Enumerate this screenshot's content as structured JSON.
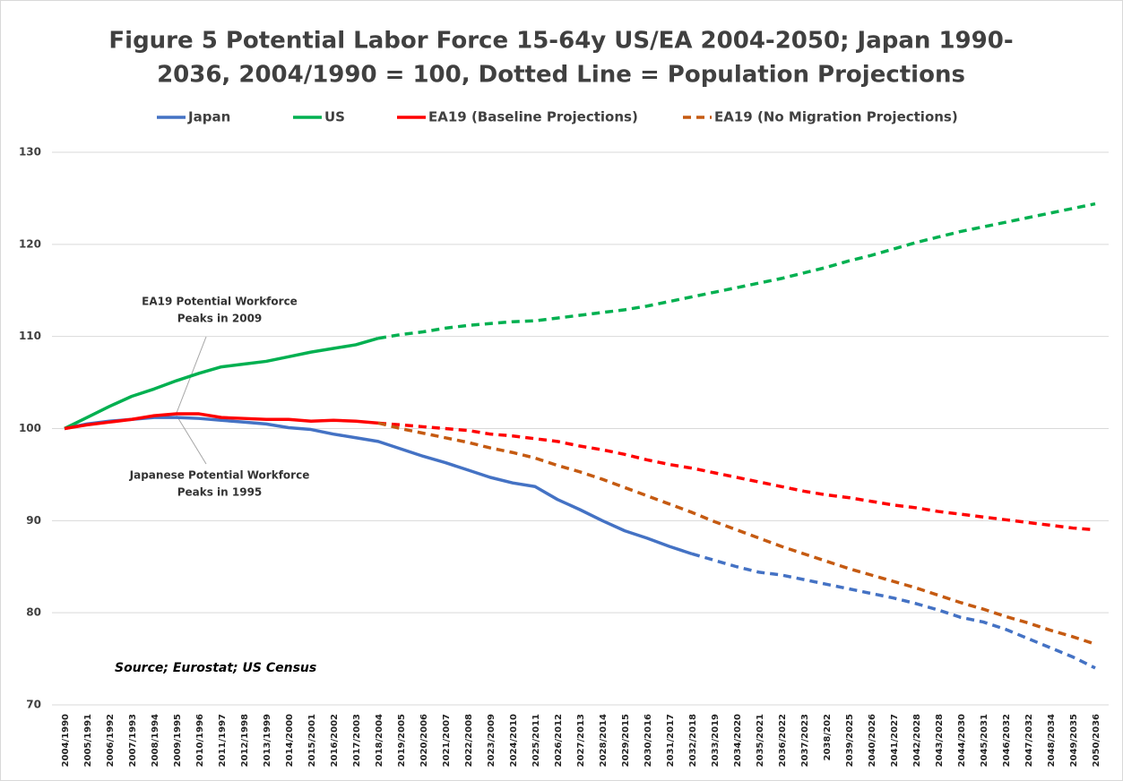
{
  "chart_data": {
    "type": "line",
    "title": [
      "Figure 5   Potential Labor Force 15-64y   US/EA 2004-2050; Japan 1990-",
      "2036, 2004/1990 = 100, Dotted Line = Population Projections"
    ],
    "categories": [
      "2004/1990",
      "2005/1991",
      "2006/1992",
      "2007/1993",
      "2008/1994",
      "2009/1995",
      "2010/1996",
      "2011/1997",
      "2012/1998",
      "2013/1999",
      "2014/2000",
      "2015/2001",
      "2016/2002",
      "2017/2003",
      "2018/2004",
      "2019/2005",
      "2020/2006",
      "2021/2007",
      "2022/2008",
      "2023/2009",
      "2024/2010",
      "2025/2011",
      "2026/2012",
      "2027/2013",
      "2028/2014",
      "2029/2015",
      "2030/2016",
      "2031/2017",
      "2032/2018",
      "2033/2019",
      "2034/2020",
      "2035/2021",
      "2036/2022",
      "2037/2023",
      "2038/202",
      "2039/2025",
      "2040/2026",
      "2041/2027",
      "2042/2028",
      "2043/2028",
      "2044/2030",
      "2045/2031",
      "2046/2032",
      "2047/2032",
      "2048/2034",
      "2049/2035",
      "2050/2036"
    ],
    "series": [
      {
        "name": "Japan",
        "color": "#4472c4",
        "dash_from": 28,
        "values": [
          100,
          100.5,
          100.8,
          101.0,
          101.2,
          101.2,
          101.1,
          100.9,
          100.7,
          100.5,
          100.1,
          99.9,
          99.4,
          99.0,
          98.6,
          97.8,
          97.0,
          96.3,
          95.5,
          94.7,
          94.1,
          93.7,
          92.3,
          91.2,
          90.0,
          88.9,
          88.1,
          87.2,
          86.4,
          85.7,
          85.0,
          84.4,
          84.1,
          83.6,
          83.1,
          82.6,
          82.1,
          81.6,
          81.0,
          80.3,
          79.5,
          79.0,
          78.2,
          77.2,
          76.2,
          75.2,
          74.0
        ]
      },
      {
        "name": "US",
        "color": "#00b050",
        "dash_from": 14,
        "values": [
          100,
          101.2,
          102.4,
          103.5,
          104.3,
          105.2,
          106.0,
          106.7,
          107.0,
          107.3,
          107.8,
          108.3,
          108.7,
          109.1,
          109.8,
          110.2,
          110.5,
          110.9,
          111.2,
          111.4,
          111.6,
          111.7,
          112.0,
          112.3,
          112.6,
          112.9,
          113.3,
          113.8,
          114.3,
          114.8,
          115.3,
          115.8,
          116.3,
          116.9,
          117.5,
          118.2,
          118.8,
          119.5,
          120.2,
          120.8,
          121.4,
          121.9,
          122.4,
          122.9,
          123.4,
          123.9,
          124.4
        ]
      },
      {
        "name": "EA19 (Baseline Projections)",
        "color": "#ff0000",
        "dash_from": 14,
        "values": [
          100,
          100.4,
          100.7,
          101.0,
          101.4,
          101.6,
          101.6,
          101.2,
          101.1,
          101.0,
          101.0,
          100.8,
          100.9,
          100.8,
          100.6,
          100.4,
          100.2,
          100.0,
          99.8,
          99.4,
          99.2,
          98.9,
          98.6,
          98.1,
          97.7,
          97.2,
          96.6,
          96.1,
          95.7,
          95.2,
          94.7,
          94.2,
          93.7,
          93.2,
          92.8,
          92.5,
          92.1,
          91.7,
          91.4,
          91.0,
          90.7,
          90.4,
          90.1,
          89.8,
          89.5,
          89.2,
          89.0
        ]
      },
      {
        "name": "EA19 (No Migration Projections)",
        "color": "#c55a11",
        "dash_from": 0,
        "values": [
          null,
          null,
          null,
          null,
          null,
          null,
          null,
          null,
          null,
          null,
          null,
          null,
          null,
          null,
          100.6,
          100.0,
          99.5,
          99.0,
          98.5,
          97.9,
          97.4,
          96.8,
          96.0,
          95.3,
          94.5,
          93.6,
          92.7,
          91.8,
          90.9,
          89.9,
          89.0,
          88.1,
          87.2,
          86.4,
          85.6,
          84.8,
          84.1,
          83.4,
          82.7,
          81.9,
          81.1,
          80.4,
          79.6,
          78.9,
          78.1,
          77.4,
          76.6
        ]
      }
    ],
    "ylim": [
      70,
      130
    ],
    "yticks": [
      70,
      80,
      90,
      100,
      110,
      120,
      130
    ],
    "grid": true,
    "legend": "top",
    "annotations": [
      [
        "EA19 Potential Workforce",
        "Peaks in 2009"
      ],
      [
        "Japanese Potential Workforce",
        "Peaks in 1995"
      ]
    ],
    "source": "Source; Eurostat; US Census"
  }
}
